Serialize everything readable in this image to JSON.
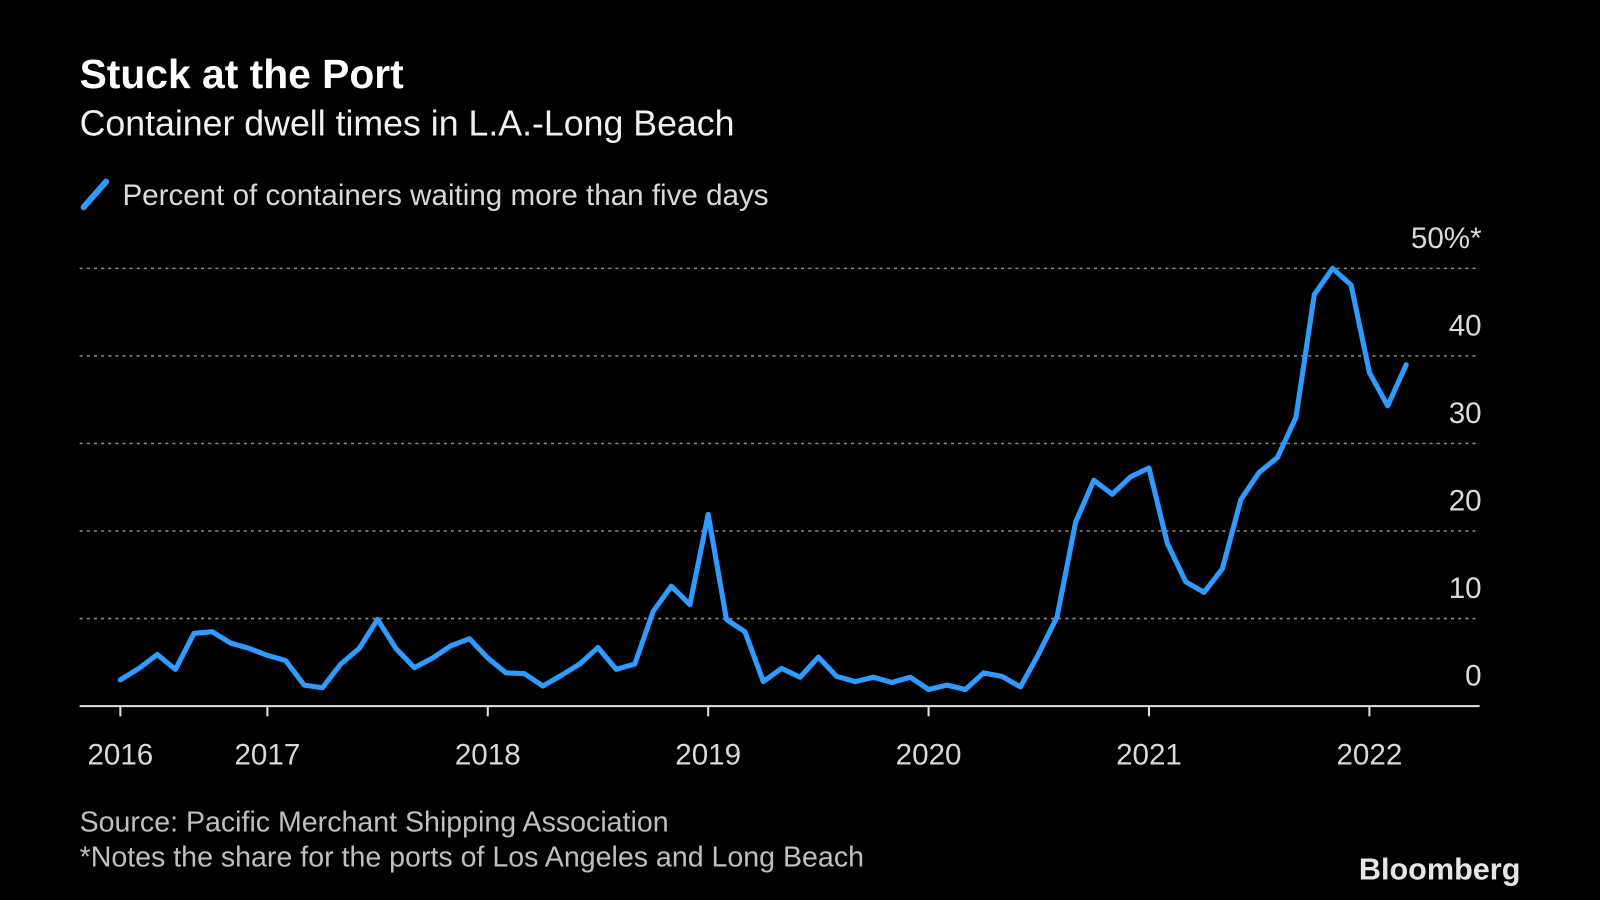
{
  "chart_data": {
    "type": "line",
    "title": "Stuck at the Port",
    "subtitle": "Container dwell times in L.A.-Long Beach",
    "source": "Source: Pacific Merchant Shipping Association",
    "note": "*Notes the share for the ports of Los Angeles and Long Beach",
    "brand": "Bloomberg",
    "x": [
      2016.333,
      2016.417,
      2016.5,
      2016.583,
      2016.667,
      2016.75,
      2016.833,
      2016.917,
      2017,
      2017.083,
      2017.167,
      2017.25,
      2017.333,
      2017.417,
      2017.5,
      2017.583,
      2017.667,
      2017.75,
      2017.833,
      2017.917,
      2018,
      2018.083,
      2018.167,
      2018.25,
      2018.333,
      2018.417,
      2018.5,
      2018.583,
      2018.667,
      2018.75,
      2018.833,
      2018.917,
      2019,
      2019.083,
      2019.167,
      2019.25,
      2019.333,
      2019.417,
      2019.5,
      2019.583,
      2019.667,
      2019.75,
      2019.833,
      2019.917,
      2020,
      2020.083,
      2020.167,
      2020.25,
      2020.333,
      2020.417,
      2020.5,
      2020.583,
      2020.667,
      2020.75,
      2020.833,
      2020.917,
      2021,
      2021.083,
      2021.167,
      2021.25,
      2021.333,
      2021.417,
      2021.5,
      2021.583,
      2021.667,
      2021.75,
      2021.833,
      2021.917,
      2022,
      2022.083,
      2022.167
    ],
    "series": [
      {
        "name": "Percent of containers waiting more than five days",
        "color": "#2e9bff",
        "values": [
          3.0,
          4.3,
          5.9,
          4.2,
          8.3,
          8.5,
          7.2,
          6.6,
          5.8,
          5.2,
          2.4,
          2.1,
          4.8,
          6.6,
          9.9,
          6.6,
          4.4,
          5.5,
          6.9,
          7.7,
          5.5,
          3.8,
          3.7,
          2.3,
          3.5,
          4.8,
          6.7,
          4.2,
          4.8,
          10.8,
          13.7,
          11.6,
          21.9,
          9.9,
          8.5,
          2.8,
          4.3,
          3.3,
          5.6,
          3.4,
          2.8,
          3.3,
          2.7,
          3.3,
          1.9,
          2.4,
          1.9,
          3.8,
          3.4,
          2.2,
          6.0,
          10.2,
          21.0,
          25.8,
          24.2,
          26.2,
          27.2,
          18.6,
          14.2,
          13.0,
          15.7,
          23.6,
          26.7,
          28.4,
          33.0,
          47.0,
          50.0,
          48.1,
          38.1,
          34.3,
          39.0
        ]
      }
    ],
    "xlim": [
      2016.148,
      2022.5
    ],
    "xticks": [
      {
        "value": 2016.333,
        "label": "2016"
      },
      2017,
      2018,
      2019,
      2020,
      2021,
      2022
    ],
    "ylim": [
      0,
      50
    ],
    "yticks": [
      0,
      10,
      20,
      30,
      40,
      {
        "value": 50,
        "label": "50%*"
      }
    ],
    "grid": true
  }
}
